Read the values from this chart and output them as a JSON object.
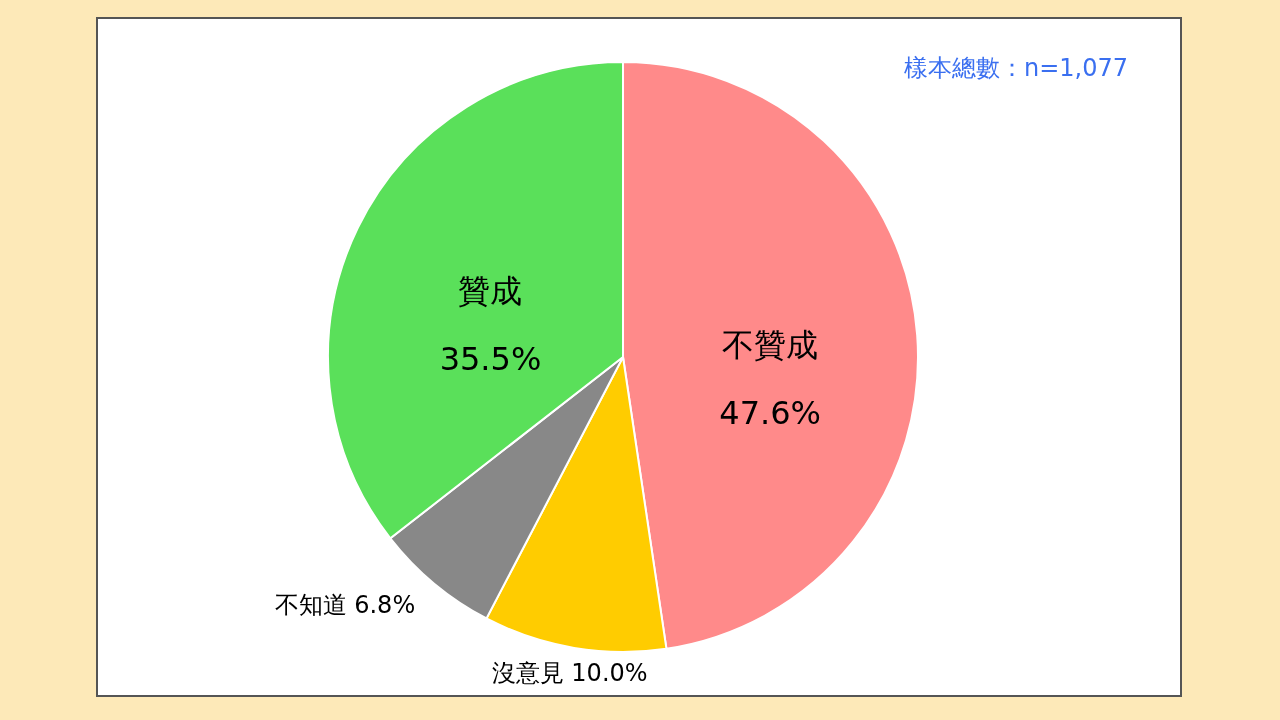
{
  "chart_data": {
    "type": "pie",
    "categories": [
      "不贊成",
      "沒意見",
      "不知道",
      "贊成"
    ],
    "values": [
      47.6,
      10.0,
      6.8,
      35.5
    ],
    "colors": [
      "#ff8a8a",
      "#ffcc00",
      "#888888",
      "#5ae05a"
    ],
    "value_labels": [
      "47.6%",
      "10.0%",
      "6.8%",
      "35.5%"
    ],
    "annotations": [
      "樣本總數：n=1,077"
    ]
  }
}
